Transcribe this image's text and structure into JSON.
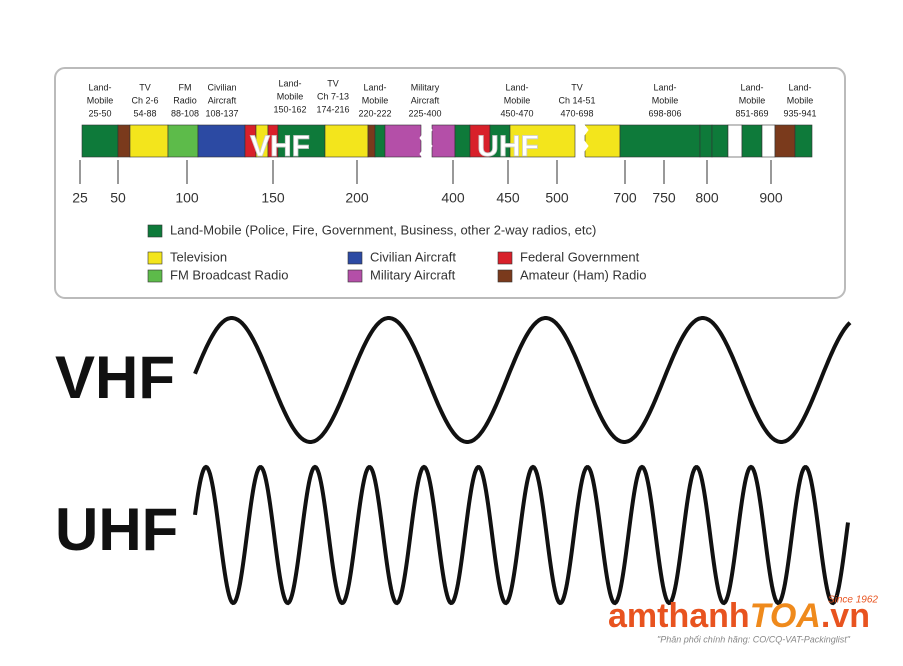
{
  "bands": [
    {
      "lines": [
        "Land-",
        "Mobile",
        "25-50"
      ]
    },
    {
      "lines": [
        "TV",
        "Ch 2-6",
        "54-88"
      ]
    },
    {
      "lines": [
        "FM",
        "Radio",
        "88-108"
      ]
    },
    {
      "lines": [
        "Civilian",
        "Aircraft",
        "108-137"
      ]
    },
    {
      "lines": [
        "Land-",
        "Mobile",
        "150-162"
      ]
    },
    {
      "lines": [
        "TV",
        "Ch 7-13",
        "174-216"
      ]
    },
    {
      "lines": [
        "Land-",
        "Mobile",
        "220-222"
      ]
    },
    {
      "lines": [
        "Military",
        "Aircraft",
        "225-400"
      ]
    },
    {
      "lines": [
        "Land-",
        "Mobile",
        "450-470"
      ]
    },
    {
      "lines": [
        "TV",
        "Ch 14-51",
        "470-698"
      ]
    },
    {
      "lines": [
        "Land-",
        "Mobile",
        "698-806"
      ]
    },
    {
      "lines": [
        "Land-",
        "Mobile",
        "851-869"
      ]
    },
    {
      "lines": [
        "Land-",
        "Mobile",
        "935-941"
      ]
    }
  ],
  "bar_labels": [
    "VHF",
    "UHF"
  ],
  "axis_ticks": [
    "25",
    "50",
    "100",
    "150",
    "200",
    "400",
    "450",
    "500",
    "700",
    "750",
    "800",
    "900"
  ],
  "legend": [
    {
      "label": "Land-Mobile (Police, Fire, Government, Business, other 2-way radios, etc)"
    },
    {
      "label": "Television"
    },
    {
      "label": "FM Broadcast Radio"
    },
    {
      "label": "Civilian Aircraft"
    },
    {
      "label": "Military Aircraft"
    },
    {
      "label": "Federal Government"
    },
    {
      "label": "Amateur (Ham) Radio"
    }
  ],
  "waves": [
    {
      "label": "VHF"
    },
    {
      "label": "UHF"
    }
  ],
  "logo": {
    "brand": "amthanh",
    "brand_accent": "TOA",
    "domain": ".vn",
    "since": "Since 1962",
    "tagline": "\"Phân phối chính hãng: CO/CQ-VAT-Packinglist\""
  }
}
